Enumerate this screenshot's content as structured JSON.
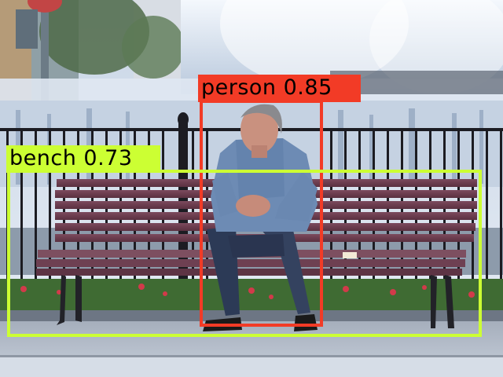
{
  "image": {
    "description_icon": "photo-man-on-bench"
  },
  "detections": [
    {
      "label": "person",
      "score": "0.85",
      "text": "person 0.85",
      "color": "#f23b26"
    },
    {
      "label": "bench",
      "score": "0.73",
      "text": "bench 0.73",
      "color": "#ccff33"
    }
  ]
}
